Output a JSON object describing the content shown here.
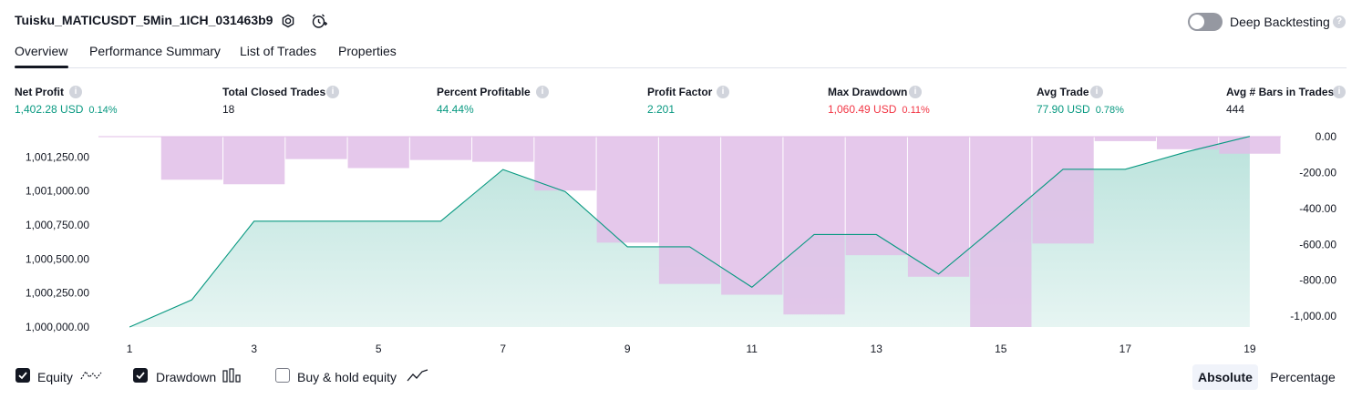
{
  "header": {
    "strategy_name": "Tuisku_MATICUSDT_5Min_1ICH_031463b9",
    "settings_icon": "gear-icon",
    "replay_icon": "alarm-add-icon",
    "deep_backtesting_label": "Deep Backtesting",
    "deep_backtesting_on": false
  },
  "tabs": [
    {
      "label": "Overview",
      "active": true
    },
    {
      "label": "Performance Summary",
      "active": false
    },
    {
      "label": "List of Trades",
      "active": false
    },
    {
      "label": "Properties",
      "active": false
    }
  ],
  "metrics": [
    {
      "label": "Net Profit",
      "value": "1,402.28 USD",
      "percent": "0.14%",
      "color": "#089981"
    },
    {
      "label": "Total Closed Trades",
      "value": "18",
      "percent": "",
      "color": "#131722"
    },
    {
      "label": "Percent Profitable",
      "value": "44.44%",
      "percent": "",
      "color": "#089981"
    },
    {
      "label": "Profit Factor",
      "value": "2.201",
      "percent": "",
      "color": "#089981"
    },
    {
      "label": "Max Drawdown",
      "value": "1,060.49 USD",
      "percent": "0.11%",
      "color": "#f23645"
    },
    {
      "label": "Avg Trade",
      "value": "77.90 USD",
      "percent": "0.78%",
      "color": "#089981"
    },
    {
      "label": "Avg # Bars in Trades",
      "value": "444",
      "percent": "",
      "color": "#131722"
    }
  ],
  "chart_data": {
    "type": "area",
    "x": [
      1,
      2,
      3,
      4,
      5,
      6,
      7,
      8,
      9,
      10,
      11,
      12,
      13,
      14,
      15,
      16,
      17,
      18,
      19
    ],
    "x_tick_labels": [
      "1",
      "3",
      "5",
      "7",
      "9",
      "11",
      "13",
      "15",
      "17",
      "19"
    ],
    "left_axis": {
      "ticks": [
        "1,001,250.00",
        "1,001,000.00",
        "1,000,750.00",
        "1,000,500.00",
        "1,000,250.00",
        "1,000,000.00"
      ],
      "ylim": [
        1000000,
        1001400
      ]
    },
    "right_axis": {
      "ticks": [
        "0.00",
        "-200.00",
        "-400.00",
        "-600.00",
        "-800.00",
        "-1,000.00"
      ],
      "ylim": [
        -1060,
        0
      ]
    },
    "series": [
      {
        "name": "Equity",
        "axis": "left",
        "color": "#089981",
        "values": [
          1000000,
          1000200,
          1000778,
          1000778,
          1000778,
          1000778,
          1001158,
          1000996,
          1000590,
          1000590,
          1000293,
          1000680,
          1000680,
          1000390,
          1000770,
          1001160,
          1001160,
          1001290,
          1001402
        ]
      },
      {
        "name": "Drawdown",
        "axis": "right",
        "color": "#e1bee7",
        "values": [
          0,
          -240,
          -265,
          -125,
          -175,
          -130,
          -140,
          -300,
          -590,
          -820,
          -880,
          -990,
          -660,
          -780,
          -1060,
          -595,
          -25,
          -70,
          -95
        ]
      }
    ]
  },
  "legend": {
    "items": [
      {
        "label": "Equity",
        "checked": true,
        "icon": "equity-line-icon"
      },
      {
        "label": "Drawdown",
        "checked": true,
        "icon": "drawdown-bars-icon"
      },
      {
        "label": "Buy & hold equity",
        "checked": false,
        "icon": "buy-hold-line-icon"
      }
    ],
    "mode_buttons": [
      {
        "label": "Absolute",
        "active": true
      },
      {
        "label": "Percentage",
        "active": false
      }
    ]
  }
}
